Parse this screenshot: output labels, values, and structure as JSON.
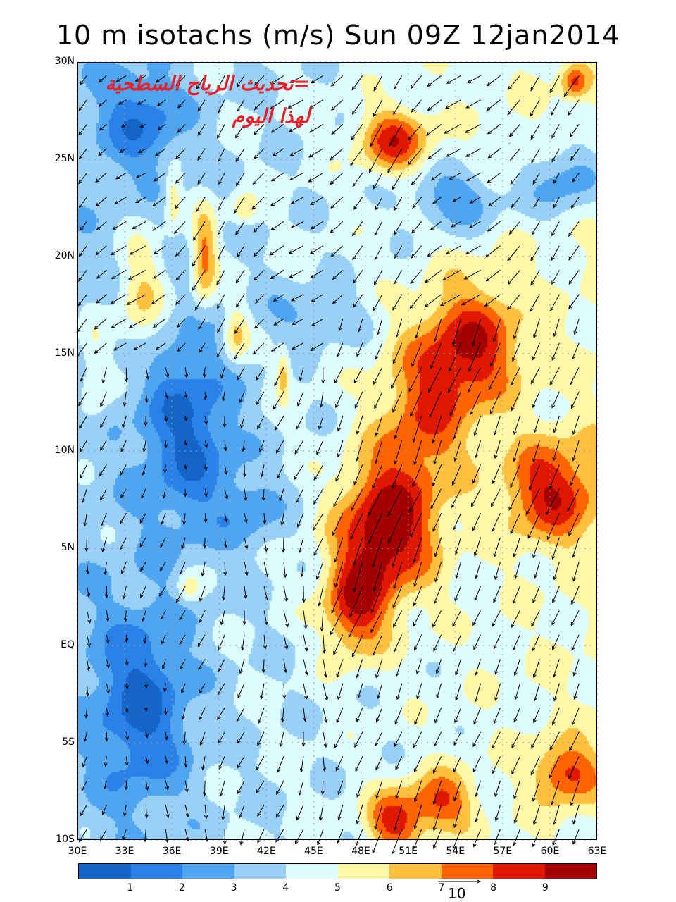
{
  "title": "10 m isotachs (m/s) Sun 09Z 12jan2014",
  "annotation": {
    "line1": "=تحديث الرياح السطحية",
    "line2": "لهذا اليوم",
    "color": "#e8202a"
  },
  "map": {
    "variable": "10 m wind speed isotachs with wind vectors",
    "lon_range": [
      30,
      63
    ],
    "lat_range": [
      -10,
      30
    ],
    "lat_labels": [
      "30N",
      "25N",
      "20N",
      "15N",
      "10N",
      "5N",
      "EQ",
      "5S",
      "10S"
    ],
    "lat_values": [
      30,
      25,
      20,
      15,
      10,
      5,
      0,
      -5,
      -10
    ],
    "lon_labels": [
      "30E",
      "33E",
      "36E",
      "39E",
      "42E",
      "45E",
      "48E",
      "51E",
      "54E",
      "57E",
      "60E",
      "63E"
    ],
    "lon_values": [
      30,
      33,
      36,
      39,
      42,
      45,
      48,
      51,
      54,
      57,
      60,
      63
    ]
  },
  "colorbar": {
    "colors": [
      "#1565c8",
      "#2a82e8",
      "#50a5f0",
      "#99d0f8",
      "#ddfcfe",
      "#fff7a8",
      "#ffc040",
      "#ff6400",
      "#e01800",
      "#a50000"
    ],
    "labels": [
      "1",
      "2",
      "3",
      "4",
      "5",
      "6",
      "7",
      "8",
      "9"
    ]
  },
  "reference_vector": {
    "label": "10",
    "units": "m/s"
  }
}
